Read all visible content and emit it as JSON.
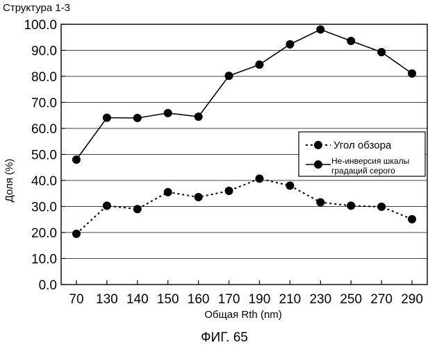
{
  "structure_label": "Структура 1-3",
  "figure_label": "ФИГ. 65",
  "chart_data": {
    "type": "line",
    "xlabel": "Общая Rth (nm)",
    "ylabel": "Доля (%)",
    "ylim": [
      0,
      100
    ],
    "yticks": [
      "0.0",
      "10.0",
      "20.0",
      "30.0",
      "40.0",
      "50.0",
      "60.0",
      "70.0",
      "80.0",
      "90.0",
      "100.0"
    ],
    "categories": [
      "70",
      "130",
      "140",
      "150",
      "160",
      "170",
      "190",
      "210",
      "230",
      "250",
      "270",
      "290"
    ],
    "grid": true,
    "legend_position": "right",
    "series": [
      {
        "name": "Угол обзора",
        "style": "dotted",
        "color": "#000000",
        "values": [
          19.5,
          30.3,
          29.0,
          35.5,
          33.6,
          36.0,
          40.7,
          38.0,
          31.6,
          30.3,
          29.9,
          25.1
        ]
      },
      {
        "name": "Не-инверсия шкалы градаций серого",
        "name_lines": [
          "Не-инверсия шкалы",
          "градаций серого"
        ],
        "style": "solid",
        "color": "#000000",
        "values": [
          48.0,
          64.1,
          64.0,
          65.9,
          64.5,
          80.2,
          84.5,
          92.3,
          98.0,
          93.6,
          89.3,
          81.1
        ]
      }
    ]
  }
}
